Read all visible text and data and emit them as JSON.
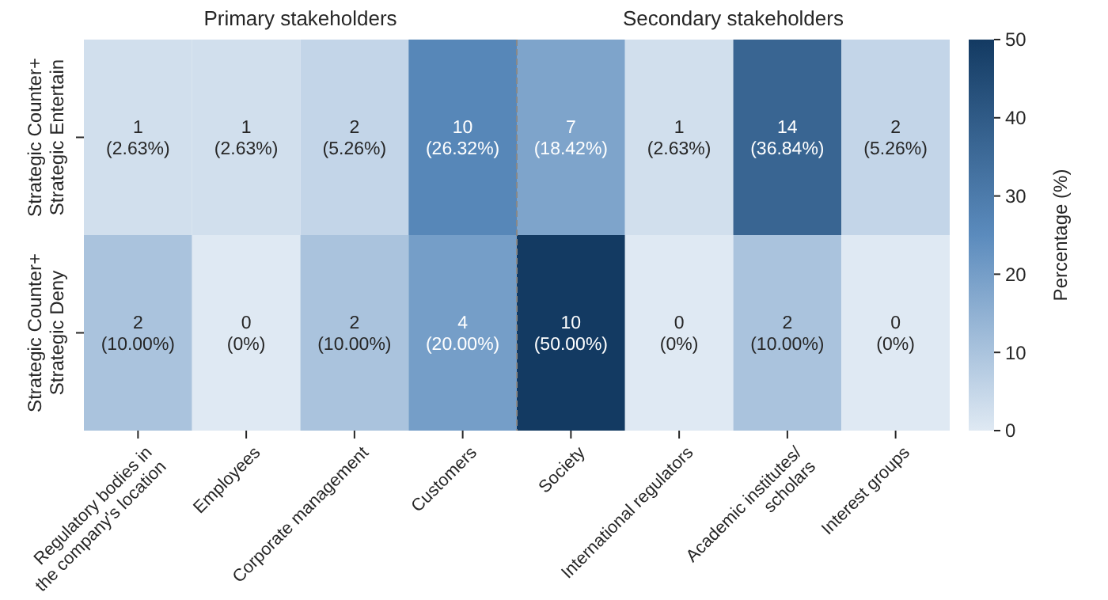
{
  "chart_data": {
    "type": "heatmap",
    "categories": [
      "Regulatory bodies in\nthe company's location",
      "Employees",
      "Corporate management",
      "Customers",
      "Society",
      "International regulators",
      "Academic institutes/\nscholars",
      "Interest groups"
    ],
    "y_categories": [
      "Strategic Counter+\nStrategic Entertain",
      "Strategic Counter+\nStrategic Deny"
    ],
    "cells": [
      [
        2.63,
        2.63,
        5.26,
        26.32,
        18.42,
        2.63,
        36.84,
        5.26
      ],
      [
        10,
        0,
        10,
        20,
        50,
        0,
        10,
        0
      ]
    ],
    "cell_labels": [
      [
        "1\n(2.63%)",
        "1\n(2.63%)",
        "2\n(5.26%)",
        "10\n(26.32%)",
        "7\n(18.42%)",
        "1\n(2.63%)",
        "14\n(36.84%)",
        "2\n(5.26%)"
      ],
      [
        "2\n(10.00%)",
        "0\n(0%)",
        "2\n(10.00%)",
        "4\n(20.00%)",
        "10\n(50.00%)",
        "0\n(0%)",
        "2\n(10.00%)",
        "0\n(0%)"
      ]
    ],
    "clim": [
      0,
      50
    ],
    "cticks": [
      0,
      10,
      20,
      30,
      40,
      50
    ],
    "clabel": "Percentage (%)",
    "annotations": [
      "Primary stakeholders",
      "Secondary stakeholders"
    ]
  }
}
